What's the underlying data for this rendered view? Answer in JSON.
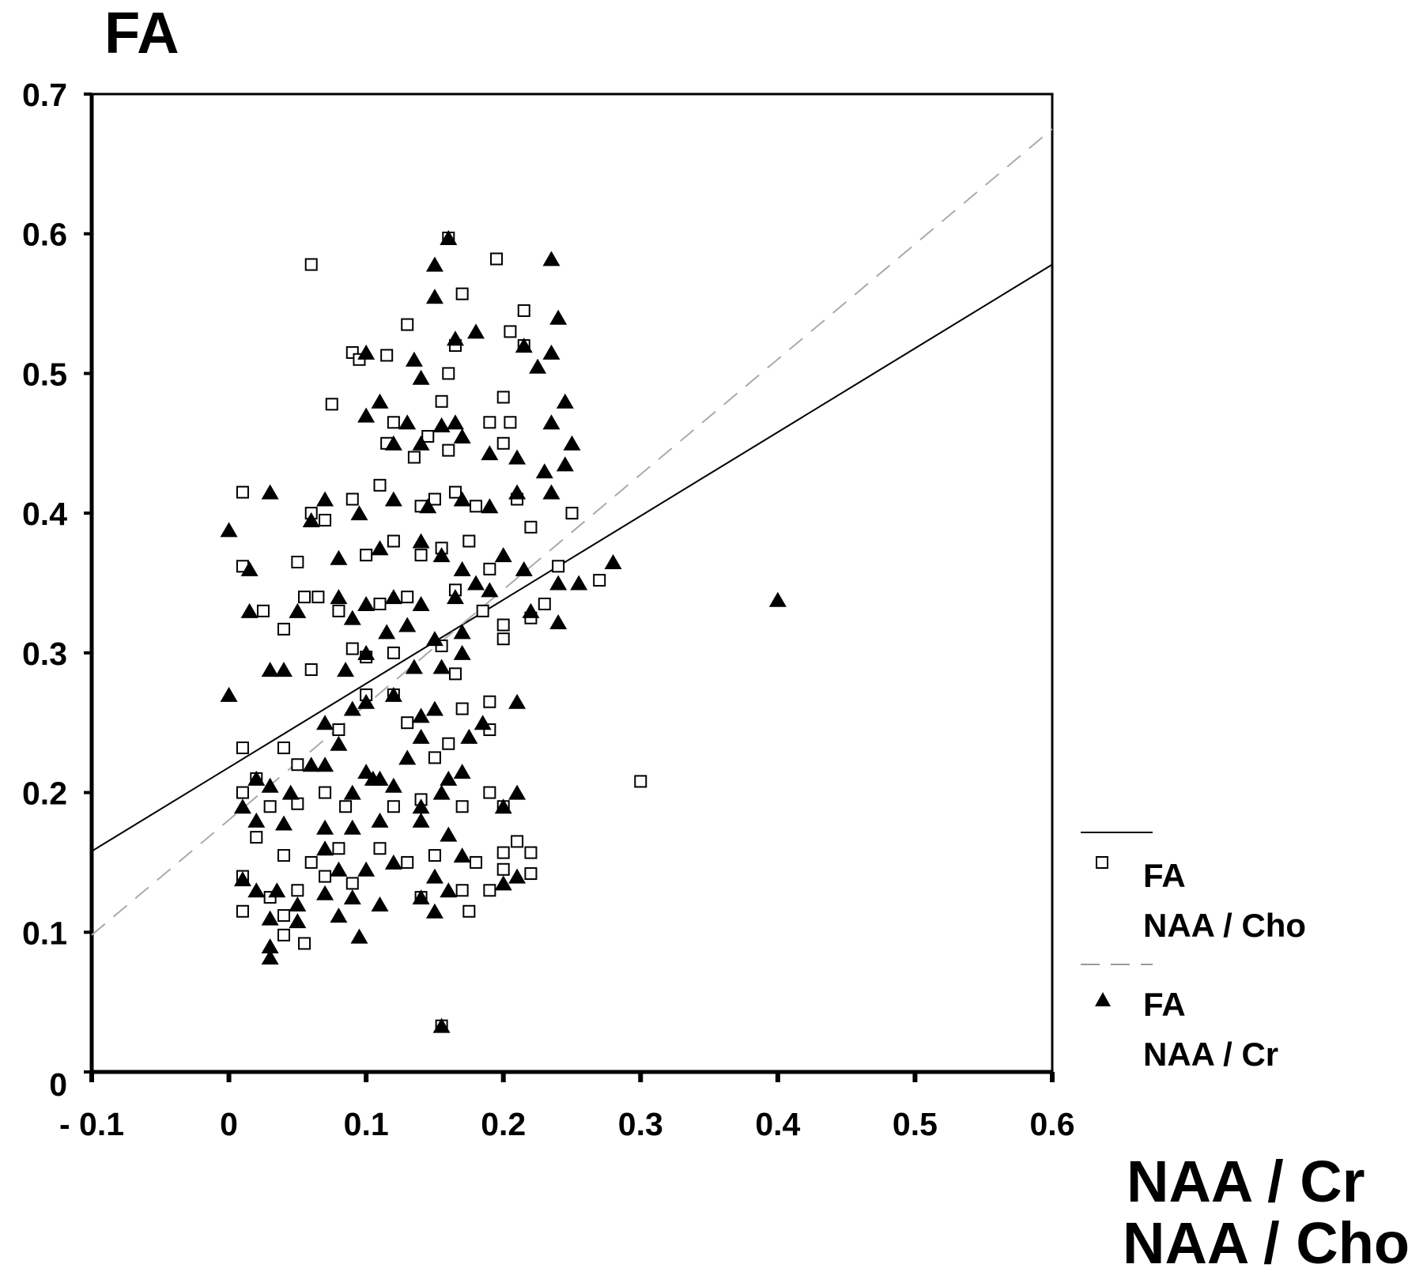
{
  "chart_data": {
    "type": "scatter",
    "title": "",
    "ylabel": "FA",
    "xlabel": [
      "NAA / Cr",
      "NAA / Cho"
    ],
    "xlim": [
      -0.1,
      0.6
    ],
    "ylim": [
      0,
      0.7
    ],
    "x_ticks": [
      -0.1,
      0,
      0.1,
      0.2,
      0.3,
      0.4,
      0.5,
      0.6
    ],
    "x_tick_labels": [
      "- 0.1",
      "0",
      "0.1",
      "0.2",
      "0.3",
      "0.4",
      "0.5",
      "0.6"
    ],
    "y_ticks": [
      0,
      0.1,
      0.2,
      0.3,
      0.4,
      0.5,
      0.6,
      0.7
    ],
    "y_tick_labels": [
      "0",
      "0.1",
      "0.2",
      "0.3",
      "0.4",
      "0.5",
      "0.6",
      "0.7"
    ],
    "grid": false,
    "legend_placement": "right",
    "legend": [
      {
        "line1": "FA",
        "line2": "NAA / Cho",
        "marker": "open-square",
        "line": "solid"
      },
      {
        "line1": "FA",
        "line2": "NAA / Cr",
        "marker": "filled-triangle",
        "line": "dashed"
      }
    ],
    "series": [
      {
        "marker": "open-square",
        "color": "#000000",
        "fit_line": {
          "style": "solid",
          "x": [
            -0.1,
            0.6
          ],
          "y": [
            0.158,
            0.578
          ]
        },
        "points": [
          [
            0.06,
            0.578
          ],
          [
            0.16,
            0.597
          ],
          [
            0.195,
            0.582
          ],
          [
            0.17,
            0.557
          ],
          [
            0.215,
            0.545
          ],
          [
            0.13,
            0.535
          ],
          [
            0.205,
            0.53
          ],
          [
            0.215,
            0.52
          ],
          [
            0.09,
            0.515
          ],
          [
            0.095,
            0.51
          ],
          [
            0.115,
            0.513
          ],
          [
            0.16,
            0.5
          ],
          [
            0.165,
            0.52
          ],
          [
            0.075,
            0.478
          ],
          [
            0.2,
            0.483
          ],
          [
            0.155,
            0.48
          ],
          [
            0.12,
            0.465
          ],
          [
            0.19,
            0.465
          ],
          [
            0.205,
            0.465
          ],
          [
            0.115,
            0.45
          ],
          [
            0.145,
            0.455
          ],
          [
            0.135,
            0.44
          ],
          [
            0.16,
            0.445
          ],
          [
            0.2,
            0.45
          ],
          [
            0.01,
            0.415
          ],
          [
            0.06,
            0.4
          ],
          [
            0.07,
            0.395
          ],
          [
            0.09,
            0.41
          ],
          [
            0.11,
            0.42
          ],
          [
            0.14,
            0.405
          ],
          [
            0.15,
            0.41
          ],
          [
            0.165,
            0.415
          ],
          [
            0.18,
            0.405
          ],
          [
            0.21,
            0.41
          ],
          [
            0.25,
            0.4
          ],
          [
            0.01,
            0.362
          ],
          [
            0.05,
            0.365
          ],
          [
            0.1,
            0.37
          ],
          [
            0.12,
            0.38
          ],
          [
            0.14,
            0.37
          ],
          [
            0.155,
            0.375
          ],
          [
            0.175,
            0.38
          ],
          [
            0.19,
            0.36
          ],
          [
            0.22,
            0.39
          ],
          [
            0.24,
            0.362
          ],
          [
            0.27,
            0.352
          ],
          [
            0.055,
            0.34
          ],
          [
            0.065,
            0.34
          ],
          [
            0.08,
            0.33
          ],
          [
            0.11,
            0.335
          ],
          [
            0.13,
            0.34
          ],
          [
            0.165,
            0.345
          ],
          [
            0.185,
            0.33
          ],
          [
            0.22,
            0.325
          ],
          [
            0.23,
            0.335
          ],
          [
            0.025,
            0.33
          ],
          [
            0.04,
            0.317
          ],
          [
            0.06,
            0.288
          ],
          [
            0.09,
            0.303
          ],
          [
            0.1,
            0.297
          ],
          [
            0.12,
            0.3
          ],
          [
            0.155,
            0.305
          ],
          [
            0.165,
            0.285
          ],
          [
            0.2,
            0.31
          ],
          [
            0.2,
            0.32
          ],
          [
            0.01,
            0.232
          ],
          [
            0.02,
            0.21
          ],
          [
            0.04,
            0.232
          ],
          [
            0.05,
            0.22
          ],
          [
            0.08,
            0.245
          ],
          [
            0.1,
            0.27
          ],
          [
            0.12,
            0.27
          ],
          [
            0.13,
            0.25
          ],
          [
            0.15,
            0.225
          ],
          [
            0.16,
            0.235
          ],
          [
            0.17,
            0.26
          ],
          [
            0.19,
            0.265
          ],
          [
            0.19,
            0.245
          ],
          [
            0.01,
            0.2
          ],
          [
            0.03,
            0.19
          ],
          [
            0.05,
            0.192
          ],
          [
            0.07,
            0.2
          ],
          [
            0.085,
            0.19
          ],
          [
            0.12,
            0.19
          ],
          [
            0.14,
            0.195
          ],
          [
            0.17,
            0.19
          ],
          [
            0.19,
            0.2
          ],
          [
            0.2,
            0.19
          ],
          [
            0.02,
            0.168
          ],
          [
            0.04,
            0.155
          ],
          [
            0.06,
            0.15
          ],
          [
            0.08,
            0.16
          ],
          [
            0.11,
            0.16
          ],
          [
            0.13,
            0.15
          ],
          [
            0.15,
            0.155
          ],
          [
            0.18,
            0.15
          ],
          [
            0.2,
            0.157
          ],
          [
            0.21,
            0.165
          ],
          [
            0.22,
            0.157
          ],
          [
            0.01,
            0.14
          ],
          [
            0.01,
            0.115
          ],
          [
            0.03,
            0.125
          ],
          [
            0.05,
            0.13
          ],
          [
            0.07,
            0.14
          ],
          [
            0.09,
            0.135
          ],
          [
            0.14,
            0.125
          ],
          [
            0.17,
            0.13
          ],
          [
            0.19,
            0.13
          ],
          [
            0.2,
            0.145
          ],
          [
            0.22,
            0.142
          ],
          [
            0.04,
            0.112
          ],
          [
            0.04,
            0.098
          ],
          [
            0.055,
            0.092
          ],
          [
            0.175,
            0.115
          ],
          [
            0.155,
            0.033
          ],
          [
            0.3,
            0.208
          ]
        ]
      },
      {
        "marker": "filled-triangle",
        "color": "#000000",
        "fit_line": {
          "style": "dashed",
          "x": [
            -0.1,
            0.6
          ],
          "y": [
            0.098,
            0.675
          ]
        },
        "points": [
          [
            0.16,
            0.597
          ],
          [
            0.15,
            0.578
          ],
          [
            0.235,
            0.582
          ],
          [
            0.15,
            0.555
          ],
          [
            0.24,
            0.54
          ],
          [
            0.18,
            0.53
          ],
          [
            0.165,
            0.525
          ],
          [
            0.215,
            0.52
          ],
          [
            0.235,
            0.515
          ],
          [
            0.1,
            0.515
          ],
          [
            0.135,
            0.51
          ],
          [
            0.225,
            0.505
          ],
          [
            0.14,
            0.497
          ],
          [
            0.11,
            0.48
          ],
          [
            0.245,
            0.48
          ],
          [
            0.1,
            0.47
          ],
          [
            0.155,
            0.463
          ],
          [
            0.235,
            0.465
          ],
          [
            0.13,
            0.465
          ],
          [
            0.165,
            0.465
          ],
          [
            0.25,
            0.45
          ],
          [
            0.12,
            0.45
          ],
          [
            0.14,
            0.45
          ],
          [
            0.17,
            0.455
          ],
          [
            0.245,
            0.435
          ],
          [
            0.19,
            0.443
          ],
          [
            0.21,
            0.44
          ],
          [
            0.23,
            0.43
          ],
          [
            0.03,
            0.415
          ],
          [
            0.07,
            0.41
          ],
          [
            0.095,
            0.4
          ],
          [
            0.12,
            0.41
          ],
          [
            0.145,
            0.405
          ],
          [
            0.17,
            0.41
          ],
          [
            0.19,
            0.405
          ],
          [
            0.21,
            0.415
          ],
          [
            0.235,
            0.415
          ],
          [
            0.0,
            0.388
          ],
          [
            0.015,
            0.36
          ],
          [
            0.06,
            0.395
          ],
          [
            0.08,
            0.368
          ],
          [
            0.11,
            0.375
          ],
          [
            0.14,
            0.38
          ],
          [
            0.155,
            0.37
          ],
          [
            0.17,
            0.36
          ],
          [
            0.2,
            0.37
          ],
          [
            0.215,
            0.36
          ],
          [
            0.24,
            0.35
          ],
          [
            0.255,
            0.35
          ],
          [
            0.28,
            0.365
          ],
          [
            0.08,
            0.34
          ],
          [
            0.1,
            0.335
          ],
          [
            0.12,
            0.34
          ],
          [
            0.14,
            0.335
          ],
          [
            0.165,
            0.34
          ],
          [
            0.18,
            0.35
          ],
          [
            0.19,
            0.345
          ],
          [
            0.22,
            0.33
          ],
          [
            0.24,
            0.322
          ],
          [
            0.015,
            0.33
          ],
          [
            0.05,
            0.33
          ],
          [
            0.09,
            0.325
          ],
          [
            0.115,
            0.315
          ],
          [
            0.13,
            0.32
          ],
          [
            0.15,
            0.31
          ],
          [
            0.17,
            0.315
          ],
          [
            0.03,
            0.288
          ],
          [
            0.04,
            0.288
          ],
          [
            0.085,
            0.288
          ],
          [
            0.1,
            0.3
          ],
          [
            0.135,
            0.29
          ],
          [
            0.155,
            0.29
          ],
          [
            0.17,
            0.3
          ],
          [
            0.0,
            0.27
          ],
          [
            0.07,
            0.25
          ],
          [
            0.09,
            0.26
          ],
          [
            0.1,
            0.265
          ],
          [
            0.12,
            0.27
          ],
          [
            0.14,
            0.255
          ],
          [
            0.15,
            0.26
          ],
          [
            0.175,
            0.24
          ],
          [
            0.185,
            0.25
          ],
          [
            0.21,
            0.265
          ],
          [
            0.07,
            0.22
          ],
          [
            0.08,
            0.235
          ],
          [
            0.1,
            0.215
          ],
          [
            0.11,
            0.21
          ],
          [
            0.13,
            0.225
          ],
          [
            0.14,
            0.24
          ],
          [
            0.16,
            0.21
          ],
          [
            0.17,
            0.215
          ],
          [
            0.02,
            0.21
          ],
          [
            0.03,
            0.205
          ],
          [
            0.045,
            0.2
          ],
          [
            0.06,
            0.22
          ],
          [
            0.09,
            0.2
          ],
          [
            0.105,
            0.21
          ],
          [
            0.12,
            0.205
          ],
          [
            0.14,
            0.19
          ],
          [
            0.155,
            0.2
          ],
          [
            0.21,
            0.2
          ],
          [
            0.01,
            0.19
          ],
          [
            0.02,
            0.18
          ],
          [
            0.04,
            0.178
          ],
          [
            0.07,
            0.175
          ],
          [
            0.09,
            0.175
          ],
          [
            0.11,
            0.18
          ],
          [
            0.14,
            0.18
          ],
          [
            0.16,
            0.17
          ],
          [
            0.2,
            0.19
          ],
          [
            0.07,
            0.16
          ],
          [
            0.08,
            0.145
          ],
          [
            0.1,
            0.145
          ],
          [
            0.12,
            0.15
          ],
          [
            0.15,
            0.14
          ],
          [
            0.17,
            0.155
          ],
          [
            0.21,
            0.14
          ],
          [
            0.01,
            0.138
          ],
          [
            0.02,
            0.13
          ],
          [
            0.035,
            0.13
          ],
          [
            0.05,
            0.12
          ],
          [
            0.07,
            0.128
          ],
          [
            0.09,
            0.125
          ],
          [
            0.11,
            0.12
          ],
          [
            0.14,
            0.125
          ],
          [
            0.16,
            0.13
          ],
          [
            0.2,
            0.135
          ],
          [
            0.03,
            0.11
          ],
          [
            0.05,
            0.108
          ],
          [
            0.08,
            0.112
          ],
          [
            0.15,
            0.115
          ],
          [
            0.03,
            0.09
          ],
          [
            0.03,
            0.082
          ],
          [
            0.095,
            0.097
          ],
          [
            0.155,
            0.033
          ],
          [
            0.4,
            0.338
          ]
        ]
      }
    ]
  }
}
